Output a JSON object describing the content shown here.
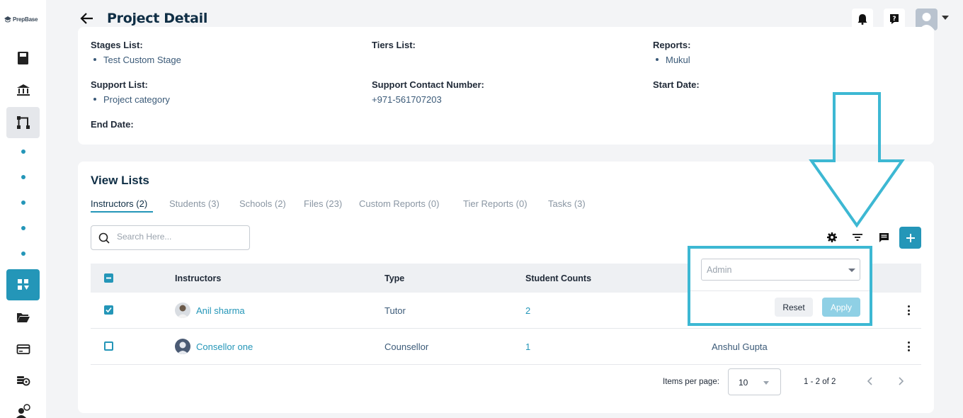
{
  "app": {
    "logo_text": "PrepBase"
  },
  "header": {
    "title": "Project Detail"
  },
  "details": {
    "stages_label": "Stages List:",
    "stages": [
      "Test Custom Stage"
    ],
    "tiers_label": "Tiers List:",
    "reports_label": "Reports:",
    "reports": [
      "Mukul"
    ],
    "support_label": "Support List:",
    "support": [
      "Project category"
    ],
    "support_contact_label": "Support Contact Number:",
    "support_contact": "+971-561707203",
    "start_date_label": "Start Date:",
    "end_date_label": "End Date:"
  },
  "view_lists": {
    "title": "View Lists",
    "tabs": [
      {
        "label": "Instructors (2)",
        "active": true
      },
      {
        "label": "Students (3)"
      },
      {
        "label": "Schools (2)"
      },
      {
        "label": "Files (23)"
      },
      {
        "label": "Custom Reports (0)"
      },
      {
        "label": "Tier Reports (0)"
      },
      {
        "label": "Tasks (3)"
      }
    ],
    "search_placeholder": "Search Here...",
    "columns": [
      "Instructors",
      "Type",
      "Student Counts"
    ],
    "rows": [
      {
        "name": "Anil sharma",
        "type": "Tutor",
        "count": "2",
        "extra": "",
        "checked": true
      },
      {
        "name": "Consellor one",
        "type": "Counsellor",
        "count": "1",
        "extra": "Anshul Gupta",
        "checked": false
      }
    ],
    "pagination": {
      "items_per_page_label": "Items per page:",
      "items_per_page": "10",
      "range": "1 - 2 of 2"
    }
  },
  "filter_popup": {
    "select_placeholder": "Admin",
    "reset_label": "Reset",
    "apply_label": "Apply"
  },
  "colors": {
    "accent": "#2496b8",
    "annotation": "#3db8d3",
    "title": "#0f2e45"
  }
}
